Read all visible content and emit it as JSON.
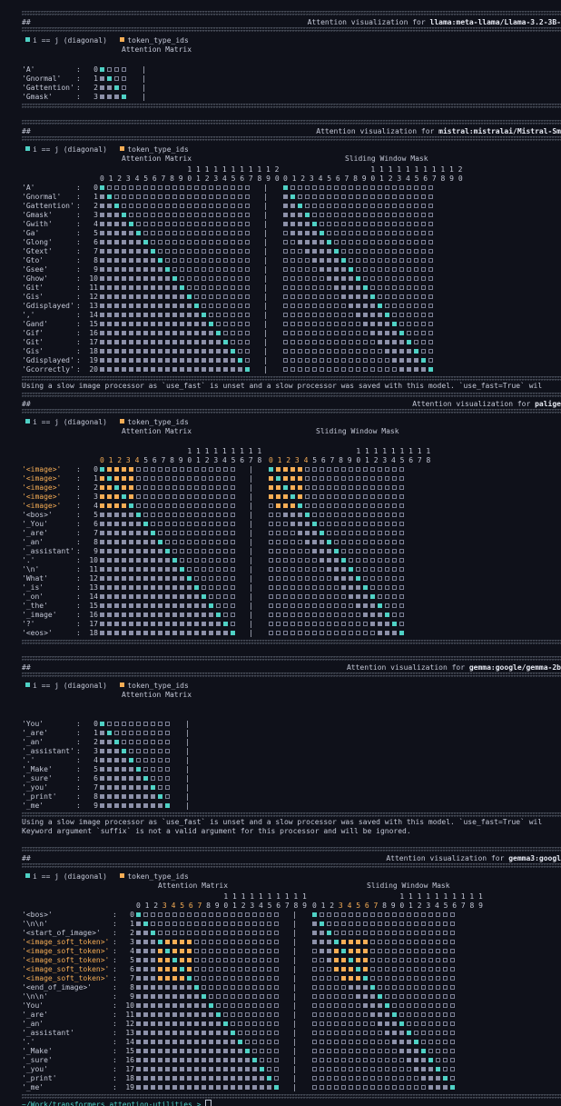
{
  "terminal": {
    "separator": "##########################################################################################################################################################################################################################################################################################################",
    "prompt": "~/Work/transformers attention-utilities > "
  },
  "legend": {
    "diagonal": "i == j (diagonal)",
    "token_type": "token_type_ids"
  },
  "captions": {
    "attention": "Attention Matrix",
    "sliding": "Sliding Window Mask"
  },
  "colors": {
    "diagonal": "#4fd1c5",
    "token_type": "#f6ad55",
    "filled": "#8c90a8",
    "empty": "#7d8196",
    "background": "#0f111a"
  },
  "messages": {
    "slow_processor": "Using a slow image processor as `use_fast` is unset and a slow processor was saved with this model. `use_fast=True` wil",
    "suffix_warning": "Keyword argument `suffix` is not a valid argument for this processor and will be ignored."
  },
  "sections": [
    {
      "title_prefix": "Attention visualization for ",
      "model": "llama:meta-llama/Llama-3.2-3B-",
      "has_sliding": false,
      "show_cols": false,
      "tokens": [
        "'A'",
        "'Gnormal'",
        "'Gattention'",
        "'Gmask'"
      ],
      "highlight_tokens": []
    },
    {
      "title_prefix": "Attention visualization for ",
      "model": "mistral:mistralai/Mistral-Sm",
      "has_sliding": true,
      "show_cols": true,
      "window": 5,
      "tokens": [
        "'A'",
        "'Gnormal'",
        "'Gattention'",
        "'Gmask'",
        "'Gwith'",
        "'Ga'",
        "'Glong'",
        "'Gtext'",
        "'Gto'",
        "'Gsee'",
        "'Ghow'",
        "'Git'",
        "'Gis'",
        "'Gdisplayed'",
        "','",
        "'Gand'",
        "'Gif'",
        "'Git'",
        "'Gis'",
        "'Gdisplayed'",
        "'Gcorrectly'"
      ],
      "highlight_tokens": []
    },
    {
      "title_prefix": "Attention visualization for ",
      "model": "palige",
      "has_sliding": true,
      "show_cols": true,
      "window": 4,
      "tokens": [
        "'<image>'",
        "'<image>'",
        "'<image>'",
        "'<image>'",
        "'<image>'",
        "'<bos>'",
        "'_You'",
        "'_are'",
        "'_an'",
        "'_assistant'",
        "'.'",
        "'\\n'",
        "'What'",
        "'_is'",
        "'_on'",
        "'_the'",
        "'_image'",
        "'?'",
        "'<eos>'"
      ],
      "highlight_tokens": [
        0,
        1,
        2,
        3,
        4
      ]
    },
    {
      "title_prefix": "Attention visualization for ",
      "model": "gemma:google/gemma-2b",
      "has_sliding": false,
      "show_cols": false,
      "tokens": [
        "'You'",
        "'_are'",
        "'_an'",
        "'_assistant'",
        "'.'",
        "'_Make'",
        "'_sure'",
        "'_you'",
        "'_print'",
        "'_me'"
      ],
      "highlight_tokens": []
    },
    {
      "title_prefix": "Attention visualization for ",
      "model": "gemma3:googl",
      "has_sliding": true,
      "show_cols": true,
      "window": 4,
      "tokens": [
        "'<bos>'",
        "'\\n\\n'",
        "'<start_of_image>'",
        "'<image_soft_token>'",
        "'<image_soft_token>'",
        "'<image_soft_token>'",
        "'<image_soft_token>'",
        "'<image_soft_token>'",
        "'<end_of_image>'",
        "'\\n\\n'",
        "'You'",
        "'_are'",
        "'_an'",
        "'_assistant'",
        "'.'",
        "'_Make'",
        "'_sure'",
        "'_you'",
        "'_print'",
        "'_me'"
      ],
      "highlight_tokens": [
        3,
        4,
        5,
        6,
        7
      ]
    }
  ]
}
